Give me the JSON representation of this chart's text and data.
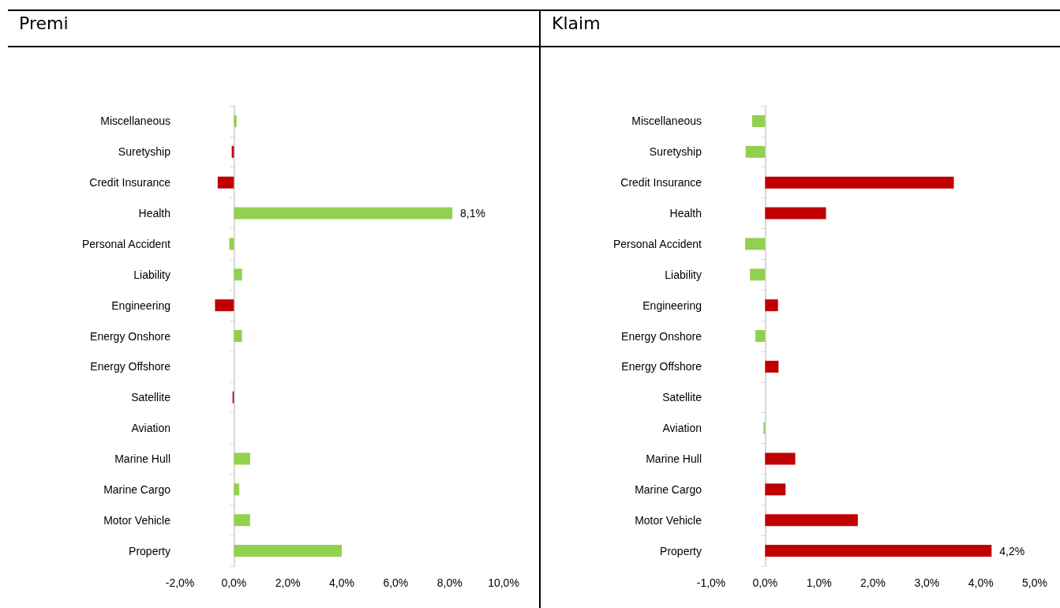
{
  "chart_data": [
    {
      "type": "bar",
      "orientation": "horizontal",
      "title": "Premi",
      "categories": [
        "Miscellaneous",
        "Suretyship",
        "Credit Insurance",
        "Health",
        "Personal Accident",
        "Liability",
        "Engineering",
        "Energy Onshore",
        "Energy Offshore",
        "Satellite",
        "Aviation",
        "Marine Hull",
        "Marine Cargo",
        "Motor Vehicle",
        "Property"
      ],
      "values": [
        0.1,
        -0.08,
        -0.6,
        8.1,
        -0.17,
        0.3,
        -0.7,
        0.3,
        0,
        -0.05,
        0,
        0.6,
        0.2,
        0.6,
        4.0
      ],
      "colors": [
        "#92d050",
        "#c00000",
        "#c00000",
        "#92d050",
        "#92d050",
        "#92d050",
        "#c00000",
        "#92d050",
        "#92d050",
        "#c00000",
        "#92d050",
        "#92d050",
        "#92d050",
        "#92d050",
        "#92d050"
      ],
      "value_labels": [
        null,
        null,
        null,
        "8,1%",
        null,
        null,
        null,
        null,
        null,
        null,
        null,
        null,
        null,
        null,
        null
      ],
      "xlim": [
        -2,
        10
      ],
      "xticks": [
        {
          "value": -2,
          "label": "-2,0%"
        },
        {
          "value": 0,
          "label": "0,0%"
        },
        {
          "value": 2,
          "label": "2,0%"
        },
        {
          "value": 4,
          "label": "4,0%"
        },
        {
          "value": 6,
          "label": "6,0%"
        },
        {
          "value": 8,
          "label": "8,0%"
        },
        {
          "value": 10,
          "label": "10,0%"
        }
      ]
    },
    {
      "type": "bar",
      "orientation": "horizontal",
      "title": "Klaim",
      "categories": [
        "Miscellaneous",
        "Suretyship",
        "Credit Insurance",
        "Health",
        "Personal Accident",
        "Liability",
        "Engineering",
        "Energy Onshore",
        "Energy Offshore",
        "Satellite",
        "Aviation",
        "Marine Hull",
        "Marine Cargo",
        "Motor Vehicle",
        "Property"
      ],
      "values": [
        -0.24,
        -0.36,
        3.5,
        1.13,
        -0.37,
        -0.28,
        0.24,
        -0.18,
        0.25,
        0,
        -0.03,
        0.56,
        0.38,
        1.72,
        4.2
      ],
      "colors": [
        "#92d050",
        "#92d050",
        "#c00000",
        "#c00000",
        "#92d050",
        "#92d050",
        "#c00000",
        "#92d050",
        "#c00000",
        "#c00000",
        "#92d050",
        "#c00000",
        "#c00000",
        "#c00000",
        "#c00000"
      ],
      "value_labels": [
        null,
        null,
        null,
        null,
        null,
        null,
        null,
        null,
        null,
        null,
        null,
        null,
        null,
        null,
        "4,2%"
      ],
      "xlim": [
        -1,
        5
      ],
      "xticks": [
        {
          "value": -1,
          "label": "-1,0%"
        },
        {
          "value": 0,
          "label": "0,0%"
        },
        {
          "value": 1,
          "label": "1,0%"
        },
        {
          "value": 2,
          "label": "2,0%"
        },
        {
          "value": 3,
          "label": "3,0%"
        },
        {
          "value": 4,
          "label": "4,0%"
        },
        {
          "value": 5,
          "label": "5,0%"
        }
      ]
    }
  ]
}
